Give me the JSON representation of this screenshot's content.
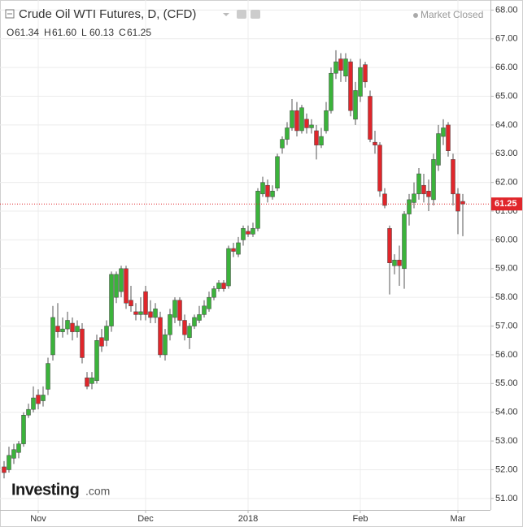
{
  "chart_data": {
    "type": "candlestick",
    "title": "Crude Oil WTI Futures, D, (CFD)",
    "status": "Market Closed",
    "quote": [
      {
        "key": "O",
        "text": "61.34"
      },
      {
        "key": "H",
        "text": "61.60"
      },
      {
        "key": "L",
        "text": "60.13"
      },
      {
        "key": "C",
        "text": "61.25"
      }
    ],
    "watermark": [
      "Investing",
      ".com"
    ],
    "last_price": 61.25,
    "up_color": "#3bb33b",
    "down_color": "#e0262b",
    "grid": true,
    "categories": [
      null,
      null,
      null,
      null,
      null,
      null,
      null,
      "Nov",
      null,
      null,
      null,
      null,
      null,
      null,
      null,
      null,
      null,
      null,
      null,
      null,
      null,
      null,
      null,
      null,
      null,
      null,
      null,
      null,
      null,
      "Dec",
      null,
      null,
      null,
      null,
      null,
      null,
      null,
      null,
      null,
      null,
      null,
      null,
      null,
      null,
      null,
      null,
      null,
      null,
      null,
      null,
      "2018",
      null,
      null,
      null,
      null,
      null,
      null,
      null,
      null,
      null,
      null,
      null,
      null,
      null,
      null,
      null,
      null,
      null,
      null,
      null,
      null,
      null,
      null,
      "Feb",
      null,
      null,
      null,
      null,
      null,
      null,
      null,
      null,
      null,
      null,
      null,
      null,
      null,
      null,
      null,
      null,
      null,
      null,
      null,
      "Mar",
      null
    ],
    "open": [
      52.1,
      52.0,
      52.4,
      52.6,
      52.9,
      53.9,
      54.1,
      54.6,
      54.4,
      54.8,
      56.0,
      57.0,
      56.8,
      56.9,
      57.1,
      56.8,
      56.9,
      55.2,
      55.0,
      55.1,
      56.6,
      56.5,
      57.0,
      58.0,
      58.2,
      59.0,
      57.9,
      57.5,
      57.4,
      58.2,
      57.5,
      57.3,
      57.3,
      56.0,
      56.7,
      57.3,
      57.9,
      57.2,
      56.6,
      57.0,
      57.2,
      57.4,
      57.6,
      58.0,
      58.3,
      58.5,
      58.4,
      59.7,
      59.5,
      60.0,
      60.3,
      60.2,
      60.4,
      61.6,
      61.9,
      61.5,
      61.8,
      63.2,
      63.5,
      63.9,
      64.5,
      63.8,
      64.2,
      63.9,
      63.8,
      63.3,
      63.8,
      64.5,
      65.8,
      66.3,
      65.7,
      66.2,
      64.2,
      65.0,
      66.1,
      65.0,
      63.4,
      63.3,
      61.6,
      60.4,
      59.1,
      59.3,
      59.0,
      60.9,
      61.3,
      61.6,
      61.9,
      61.7,
      61.4,
      62.6,
      63.6,
      64.0,
      62.8,
      61.6,
      61.34
    ],
    "high": [
      52.3,
      52.8,
      52.9,
      53.0,
      54.0,
      54.3,
      54.9,
      54.8,
      54.9,
      55.9,
      57.7,
      57.8,
      57.3,
      57.5,
      57.3,
      57.2,
      57.1,
      55.4,
      55.4,
      56.7,
      56.9,
      57.2,
      58.9,
      58.9,
      59.1,
      59.1,
      58.4,
      57.8,
      58.0,
      58.4,
      57.9,
      57.8,
      57.5,
      56.9,
      57.6,
      58.0,
      58.0,
      57.4,
      57.1,
      57.4,
      57.7,
      57.9,
      58.2,
      58.4,
      58.6,
      58.6,
      59.8,
      59.9,
      60.1,
      60.5,
      60.5,
      60.6,
      61.8,
      62.2,
      62.1,
      61.9,
      63.0,
      63.6,
      64.1,
      64.9,
      64.8,
      64.7,
      64.4,
      64.2,
      64.0,
      63.9,
      64.8,
      66.0,
      66.6,
      66.5,
      66.5,
      66.3,
      65.5,
      66.3,
      66.2,
      65.2,
      63.8,
      63.4,
      61.8,
      60.5,
      59.5,
      59.8,
      61.0,
      61.6,
      62.0,
      62.5,
      62.3,
      62.1,
      63.0,
      64.0,
      64.2,
      64.1,
      63.0,
      61.8,
      61.6
    ],
    "low": [
      51.7,
      51.9,
      52.2,
      52.4,
      52.8,
      53.8,
      54.0,
      54.1,
      54.2,
      54.6,
      55.8,
      56.6,
      56.6,
      56.7,
      56.5,
      56.6,
      55.7,
      54.8,
      54.8,
      55.0,
      56.1,
      56.3,
      56.8,
      57.8,
      58.0,
      57.6,
      57.5,
      57.2,
      57.2,
      57.2,
      57.1,
      57.1,
      55.9,
      55.8,
      56.5,
      57.1,
      57.0,
      56.5,
      56.2,
      56.9,
      57.1,
      57.3,
      57.5,
      57.9,
      58.2,
      58.2,
      58.3,
      59.4,
      59.4,
      59.8,
      60.1,
      60.1,
      60.3,
      61.5,
      61.3,
      61.4,
      61.7,
      63.0,
      63.3,
      63.8,
      63.6,
      63.7,
      63.7,
      63.7,
      62.8,
      63.2,
      63.7,
      64.4,
      65.6,
      65.5,
      65.5,
      64.3,
      64.0,
      64.8,
      65.3,
      63.4,
      63.0,
      61.5,
      61.1,
      58.1,
      58.8,
      58.4,
      58.3,
      60.5,
      61.1,
      61.4,
      61.3,
      61.0,
      61.2,
      62.4,
      63.3,
      62.9,
      61.2,
      60.2,
      60.13
    ],
    "close": [
      51.9,
      52.5,
      52.7,
      52.9,
      53.9,
      54.1,
      54.5,
      54.3,
      54.6,
      55.7,
      57.3,
      56.8,
      56.9,
      57.2,
      56.8,
      57.0,
      55.9,
      54.9,
      55.2,
      56.5,
      56.3,
      57.0,
      58.8,
      58.8,
      59.0,
      57.8,
      57.7,
      57.4,
      57.5,
      57.4,
      57.3,
      57.6,
      56.0,
      56.7,
      57.4,
      57.9,
      57.2,
      56.7,
      57.0,
      57.3,
      57.4,
      57.7,
      58.0,
      58.3,
      58.5,
      58.3,
      59.7,
      59.6,
      59.9,
      60.4,
      60.2,
      60.4,
      61.7,
      62.0,
      61.5,
      61.7,
      62.9,
      63.5,
      63.9,
      64.5,
      63.8,
      64.6,
      63.9,
      64.0,
      63.3,
      63.6,
      64.5,
      65.8,
      66.2,
      65.9,
      66.3,
      64.5,
      65.2,
      66.0,
      65.5,
      63.5,
      63.3,
      61.7,
      61.2,
      59.2,
      59.3,
      59.1,
      60.9,
      61.4,
      61.6,
      62.3,
      61.6,
      61.5,
      62.8,
      63.7,
      63.9,
      63.1,
      61.6,
      61.0,
      61.25
    ],
    "ylim": [
      50.6,
      68.35
    ],
    "yticks": [
      {
        "value": 51,
        "label": "51.00"
      },
      {
        "value": 52,
        "label": "52.00"
      },
      {
        "value": 53,
        "label": "53.00"
      },
      {
        "value": 54,
        "label": "54.00"
      },
      {
        "value": 55,
        "label": "55.00"
      },
      {
        "value": 56,
        "label": "56.00"
      },
      {
        "value": 57,
        "label": "57.00"
      },
      {
        "value": 58,
        "label": "58.00"
      },
      {
        "value": 59,
        "label": "59.00"
      },
      {
        "value": 60,
        "label": "60.00"
      },
      {
        "value": 61,
        "label": "61.00"
      },
      {
        "value": 62,
        "label": "62.00"
      },
      {
        "value": 63,
        "label": "63.00"
      },
      {
        "value": 64,
        "label": "64.00"
      },
      {
        "value": 65,
        "label": "65.00"
      },
      {
        "value": 66,
        "label": "66.00"
      },
      {
        "value": 67,
        "label": "67.00"
      },
      {
        "value": 68,
        "label": "68.00"
      }
    ]
  }
}
